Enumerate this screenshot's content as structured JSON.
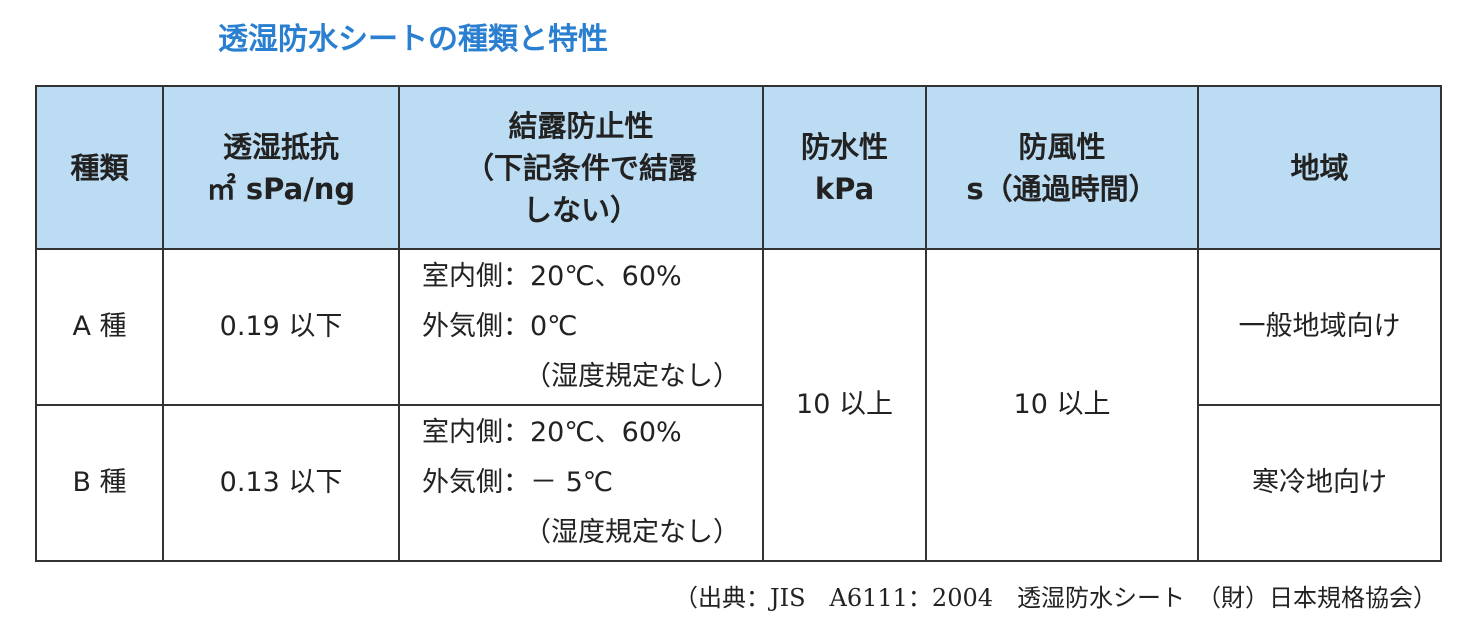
{
  "title": "透湿防水シートの種類と特性",
  "table": {
    "headers": [
      [
        "種類"
      ],
      [
        "透湿抵抗",
        "㎡ sPa/ng"
      ],
      [
        "結露防止性",
        "（下記条件で結露",
        "しない）"
      ],
      [
        "防水性",
        "kPa"
      ],
      [
        "防風性",
        "s（通過時間）"
      ],
      [
        "地域"
      ]
    ],
    "rows": [
      {
        "type": "A 種",
        "resistance": "0.19 以下",
        "condition": [
          "室内側：20℃、60%",
          "外気側：0℃",
          "（湿度規定なし）"
        ],
        "region": "一般地域向け"
      },
      {
        "type": "B 種",
        "resistance": "0.13 以下",
        "condition": [
          "室内側：20℃、60%",
          "外気側：－ 5℃",
          "（湿度規定なし）"
        ],
        "region": "寒冷地向け"
      }
    ],
    "waterproof": "10 以上",
    "windproof": "10 以上"
  },
  "source": "（出典：JIS　A6111：2004　透湿防水シート　（財）日本規格協会）"
}
